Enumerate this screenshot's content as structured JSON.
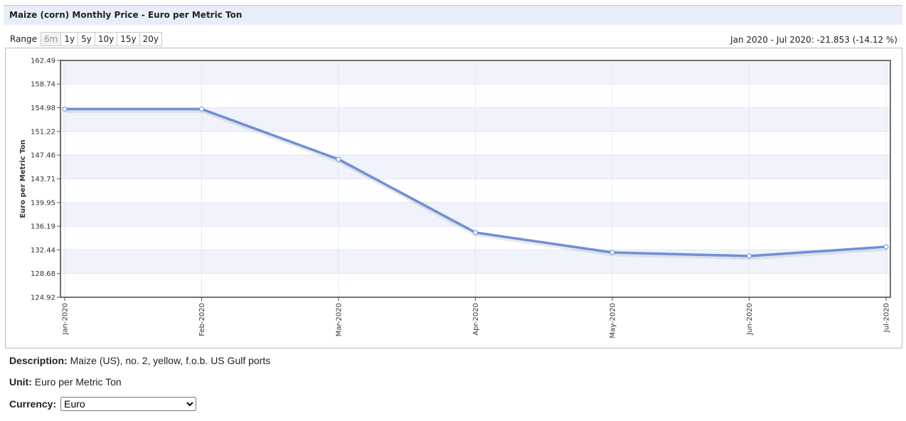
{
  "header": {
    "title": "Maize (corn) Monthly Price - Euro per Metric Ton"
  },
  "range": {
    "label": "Range",
    "buttons": [
      "6m",
      "1y",
      "5y",
      "10y",
      "15y",
      "20y"
    ],
    "summary": "Jan 2020 - Jul 2020: -21.853 (-14.12 %)"
  },
  "chart_data": {
    "type": "line",
    "y_label": "Euro per Metric Ton",
    "categories": [
      "Jan-2020",
      "Feb-2020",
      "Mar-2020",
      "Apr-2020",
      "May-2020",
      "Jun-2020",
      "Jul-2020"
    ],
    "series": [
      {
        "name": "Euro per Metric Ton",
        "color": "#6f8fd8",
        "values": [
          154.78,
          154.78,
          146.81,
          135.19,
          132.03,
          131.46,
          132.93
        ]
      }
    ],
    "ylim": [
      124.92,
      162.49
    ],
    "yticks": [
      124.92,
      128.68,
      132.44,
      136.19,
      139.95,
      143.71,
      147.46,
      151.22,
      154.98,
      158.74,
      162.49
    ],
    "grid": true
  },
  "description": {
    "label": "Description:",
    "text": "Maize (US), no. 2, yellow, f.o.b. US Gulf ports"
  },
  "unit": {
    "label": "Unit:",
    "text": "Euro per Metric Ton"
  },
  "currency": {
    "label": "Currency:",
    "selected": "Euro"
  }
}
